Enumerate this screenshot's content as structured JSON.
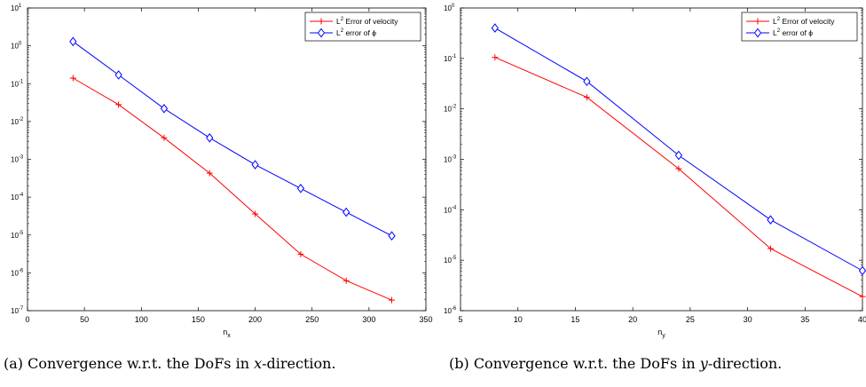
{
  "chart_data": [
    {
      "type": "line",
      "title": "",
      "xlabel": "n",
      "xlabel_sub": "x",
      "ylabel": "",
      "xlim": [
        0,
        350
      ],
      "ylim": [
        1e-07,
        10
      ],
      "yscale": "log",
      "x_ticks": [
        0,
        50,
        100,
        150,
        200,
        250,
        300,
        350
      ],
      "y_tick_exponents": [
        -7,
        -6,
        -5,
        -4,
        -3,
        -2,
        -1,
        0,
        1
      ],
      "grid": false,
      "legend_position": "top-right",
      "x": [
        40,
        80,
        120,
        160,
        200,
        240,
        280,
        320
      ],
      "series": [
        {
          "name": "Error of velocity",
          "name_prefix": "L",
          "name_sup": "2",
          "color": "#ff0000",
          "marker": "plus",
          "values": [
            0.14,
            0.028,
            0.0037,
            0.00043,
            3.6e-05,
            3.1e-06,
            6.2e-07,
            1.9e-07
          ]
        },
        {
          "name": "error of ϕ",
          "name_prefix": "L",
          "name_sup": "2",
          "color": "#0000ff",
          "marker": "diamond",
          "values": [
            1.3,
            0.17,
            0.022,
            0.0037,
            0.00072,
            0.00017,
            4e-05,
            9.5e-06
          ]
        }
      ]
    },
    {
      "type": "line",
      "title": "",
      "xlabel": "n",
      "xlabel_sub": "y",
      "ylabel": "",
      "xlim": [
        5,
        40
      ],
      "ylim": [
        1e-06,
        1
      ],
      "yscale": "log",
      "x_ticks": [
        5,
        10,
        15,
        20,
        25,
        30,
        35,
        40
      ],
      "y_tick_exponents": [
        -6,
        -5,
        -4,
        -3,
        -2,
        -1,
        0
      ],
      "grid": false,
      "legend_position": "top-right",
      "x": [
        8,
        16,
        24,
        32,
        40
      ],
      "series": [
        {
          "name": "Error of velocity",
          "name_prefix": "L",
          "name_sup": "2",
          "color": "#ff0000",
          "marker": "plus",
          "values": [
            0.105,
            0.017,
            0.00065,
            1.7e-05,
            1.9e-06
          ]
        },
        {
          "name": "error of ϕ",
          "name_prefix": "L",
          "name_sup": "2",
          "color": "#0000ff",
          "marker": "diamond",
          "values": [
            0.4,
            0.035,
            0.0012,
            6.3e-05,
            6.2e-06
          ]
        }
      ]
    }
  ],
  "captions": {
    "a_prefix": "(a) Convergence w.r.t. the DoFs in ",
    "a_var": "x",
    "a_suffix": "-direction.",
    "b_prefix": "(b) Convergence w.r.t. the DoFs in ",
    "b_var": "y",
    "b_suffix": "-direction."
  }
}
